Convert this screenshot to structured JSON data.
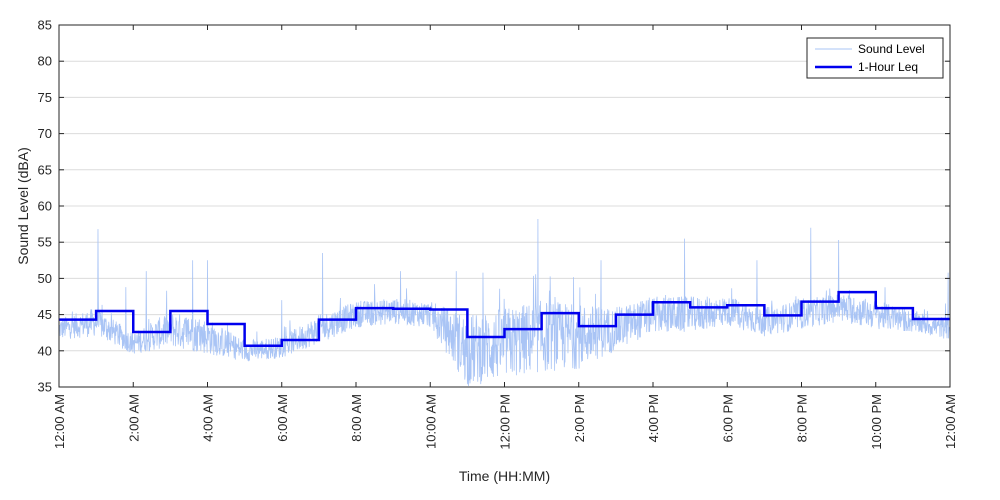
{
  "chart_data": {
    "type": "line",
    "title": "",
    "xlabel": "Time (HH:MM)",
    "ylabel": "Sound Level (dBA)",
    "xlim": [
      0,
      24
    ],
    "ylim": [
      35,
      85
    ],
    "yticks": [
      35,
      40,
      45,
      50,
      55,
      60,
      65,
      70,
      75,
      80,
      85
    ],
    "xticks": [
      0,
      2,
      4,
      6,
      8,
      10,
      12,
      14,
      16,
      18,
      20,
      22,
      24
    ],
    "xtick_labels": [
      "12:00 AM",
      "2:00 AM",
      "4:00 AM",
      "6:00 AM",
      "8:00 AM",
      "10:00 AM",
      "12:00 PM",
      "2:00 PM",
      "4:00 PM",
      "6:00 PM",
      "8:00 PM",
      "10:00 PM",
      "12:00 AM"
    ],
    "grid": "horizontal",
    "legend_position": "top-right",
    "colors": {
      "sound_level": "#a9c4f5",
      "leq": "#0000ee",
      "grid": "#dcdcdc",
      "axis": "#262626"
    },
    "series": [
      {
        "name": "Sound Level",
        "style": "thin-light-blue-noisy",
        "profile_x": [
          0,
          1,
          2,
          3,
          4,
          5,
          6,
          7,
          8,
          9,
          10,
          11,
          12,
          13,
          14,
          15,
          16,
          17,
          18,
          19,
          20,
          21,
          22,
          23,
          24
        ],
        "profile_mean": [
          43,
          44,
          41,
          43,
          42,
          40,
          40.5,
          43,
          45,
          45.5,
          45,
          40,
          41,
          42,
          42,
          43,
          45,
          45,
          45.5,
          44,
          45,
          46,
          45,
          44,
          43
        ],
        "profile_spread": [
          1.5,
          2,
          1.5,
          2.5,
          2.5,
          1.5,
          1.5,
          2,
          1.8,
          1.8,
          1.8,
          5,
          5,
          5,
          4.5,
          3,
          2.5,
          2.5,
          2,
          2,
          2,
          2,
          2,
          1.5,
          1.5
        ],
        "peaks": [
          [
            1.05,
            56.8
          ],
          [
            1.8,
            48.8
          ],
          [
            2.35,
            51
          ],
          [
            3.6,
            52.5
          ],
          [
            4.0,
            52.5
          ],
          [
            6.0,
            47
          ],
          [
            7.1,
            53.5
          ],
          [
            9.2,
            51
          ],
          [
            10.7,
            51
          ],
          [
            12.9,
            58.2
          ],
          [
            14.6,
            52.5
          ],
          [
            16.85,
            55.5
          ],
          [
            18.8,
            52.5
          ],
          [
            20.25,
            57
          ],
          [
            21.0,
            55.3
          ],
          [
            23.95,
            50.8
          ]
        ]
      },
      {
        "name": "1-Hour Leq",
        "style": "thick-blue-step",
        "x": [
          0,
          1,
          2,
          3,
          4,
          5,
          6,
          7,
          8,
          9,
          10,
          11,
          12,
          13,
          14,
          15,
          16,
          17,
          18,
          19,
          20,
          21,
          22,
          23
        ],
        "values": [
          44.3,
          45.5,
          42.6,
          45.5,
          43.7,
          40.7,
          41.5,
          44.3,
          45.9,
          45.8,
          45.7,
          41.9,
          43.0,
          45.2,
          43.4,
          45.0,
          46.7,
          46.0,
          46.3,
          44.9,
          46.8,
          48.1,
          45.9,
          44.4
        ]
      }
    ]
  }
}
